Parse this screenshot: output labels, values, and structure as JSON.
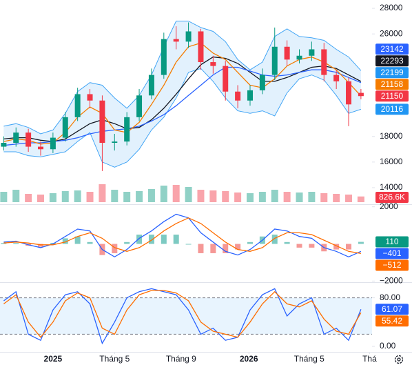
{
  "chart_data": [
    {
      "type": "candlestick",
      "xlim": [
        -0.3,
        29.9
      ],
      "ylim": [
        12760,
        28650
      ],
      "yticks": [
        14000,
        16000,
        18000,
        26000,
        28000
      ],
      "up_color": "#089981",
      "down_color": "#f23645",
      "open": [
        17200,
        17500,
        18300,
        17200,
        17000,
        17900,
        19500,
        21300,
        20800,
        17500,
        17600,
        19500,
        21200,
        22800,
        25600,
        25400,
        26200,
        23800,
        23500,
        21500,
        20800,
        21600,
        22800,
        25000,
        24000,
        24300,
        24800,
        22800,
        22300,
        21400
      ],
      "high": [
        18000,
        18700,
        18600,
        17600,
        18300,
        19900,
        21800,
        21700,
        21200,
        18200,
        19900,
        21700,
        23300,
        26100,
        26600,
        26900,
        26400,
        24300,
        23900,
        22000,
        22000,
        23300,
        26500,
        25500,
        24800,
        25400,
        25300,
        23200,
        22600,
        21700
      ],
      "low": [
        16900,
        17200,
        16800,
        16500,
        16700,
        17600,
        19200,
        20200,
        15300,
        16900,
        17300,
        19200,
        20900,
        22500,
        24800,
        24900,
        23200,
        22900,
        20800,
        20200,
        20400,
        21300,
        22400,
        23500,
        23700,
        23900,
        22300,
        21700,
        18800,
        20900
      ],
      "close": [
        17500,
        18300,
        17200,
        17000,
        17900,
        19500,
        21300,
        20800,
        17500,
        17600,
        19500,
        21200,
        22800,
        25600,
        25400,
        26200,
        23800,
        23500,
        21500,
        20800,
        21600,
        22800,
        25000,
        24000,
        24300,
        24800,
        22800,
        22300,
        20500,
        21150
      ],
      "bands": {
        "fill": "rgba(33,150,243,0.13)",
        "upper": {
          "color": "#42a5f5",
          "badge_color": "#2962ff",
          "values": [
            18800,
            19000,
            18700,
            18200,
            18500,
            19800,
            21500,
            22200,
            22000,
            21000,
            20200,
            21200,
            22800,
            25000,
            27000,
            27000,
            26500,
            26200,
            25400,
            24000,
            23200,
            23800,
            25800,
            26400,
            25800,
            25700,
            25500,
            24800,
            24200,
            23142
          ]
        },
        "lower": {
          "color": "#42a5f5",
          "badge_color": "#2196f3",
          "values": [
            16800,
            16800,
            16500,
            16400,
            16600,
            16800,
            17600,
            18300,
            16000,
            15600,
            16000,
            17000,
            18500,
            19500,
            21000,
            23000,
            23300,
            22300,
            21000,
            20000,
            19800,
            20000,
            19600,
            21400,
            22500,
            22800,
            22400,
            21200,
            19800,
            20116
          ]
        }
      },
      "overlays": [
        {
          "color": "#131722",
          "values": [
            17800,
            17900,
            17900,
            17700,
            17600,
            17800,
            18400,
            19000,
            19300,
            19000,
            18600,
            18700,
            19300,
            20200,
            21300,
            22500,
            23600,
            24200,
            24100,
            23700,
            23000,
            22300,
            22300,
            22600,
            23000,
            23400,
            23500,
            23300,
            22800,
            22293
          ]
        },
        {
          "color": "#2962ff",
          "badge_color": "#2196f3",
          "values": [
            17300,
            17400,
            17500,
            17500,
            17600,
            17700,
            17900,
            18200,
            18400,
            18500,
            18600,
            18800,
            19200,
            19700,
            20400,
            21200,
            22000,
            22800,
            23400,
            23400,
            23100,
            22800,
            22700,
            22800,
            23000,
            23200,
            23200,
            23000,
            22600,
            22199
          ]
        },
        {
          "color": "#f57c00",
          "values": [
            17600,
            17800,
            17700,
            17400,
            17500,
            18300,
            19500,
            20300,
            19800,
            18500,
            18300,
            19100,
            20500,
            22000,
            23800,
            25000,
            25300,
            24500,
            24000,
            23000,
            22000,
            21800,
            22500,
            23500,
            24000,
            24200,
            23800,
            23200,
            22200,
            21158
          ]
        }
      ],
      "volume": {
        "values": [
          1500000,
          1800000,
          1200000,
          1100000,
          1300000,
          1600000,
          1700000,
          1500000,
          2600000,
          1800000,
          1500000,
          1600000,
          1900000,
          2400000,
          2500000,
          2200000,
          1800000,
          1700000,
          1600000,
          1400000,
          1300000,
          1500000,
          1800000,
          1500000,
          1400000,
          1500000,
          1300000,
          1200000,
          1100000,
          826600
        ],
        "value_labels": [
          null,
          null,
          null,
          null,
          null,
          null,
          null,
          null,
          null,
          null,
          null,
          null,
          null,
          null,
          null,
          null,
          null,
          null,
          null,
          null,
          null,
          null,
          null,
          null,
          null,
          null,
          null,
          null,
          null,
          "826.6K"
        ]
      }
    },
    {
      "type": "macd",
      "xlim": [
        -0.3,
        29.9
      ],
      "ylim": [
        -2100,
        2100
      ],
      "yticks": [
        2000,
        {
          "value": -2000,
          "label": "−2000"
        }
      ],
      "histogram": {
        "pos_color": "#26a69a",
        "neg_color": "#ef5350",
        "badge_color": "#089981",
        "values": [
          50,
          50,
          -100,
          -150,
          50,
          300,
          400,
          100,
          -600,
          -500,
          100,
          500,
          500,
          500,
          500,
          0,
          -500,
          -500,
          -500,
          -300,
          100,
          400,
          500,
          100,
          -200,
          -200,
          -400,
          -300,
          -300,
          110
        ]
      },
      "series": [
        {
          "color": "#2962ff",
          "values": [
            100,
            150,
            -50,
            -200,
            0,
            400,
            800,
            700,
            -300,
            -700,
            -300,
            300,
            700,
            1200,
            1600,
            1400,
            600,
            100,
            -400,
            -600,
            -300,
            200,
            800,
            700,
            400,
            300,
            -200,
            -400,
            -700,
            -401
          ],
          "value_labels": [
            null,
            null,
            null,
            null,
            null,
            null,
            null,
            null,
            null,
            null,
            null,
            null,
            null,
            null,
            null,
            null,
            null,
            null,
            null,
            null,
            null,
            null,
            null,
            null,
            null,
            null,
            null,
            null,
            null,
            "−401"
          ]
        },
        {
          "color": "#ff6d00",
          "values": [
            50,
            100,
            50,
            -50,
            -50,
            100,
            400,
            600,
            300,
            -200,
            -400,
            -200,
            200,
            700,
            1100,
            1400,
            1100,
            600,
            100,
            -300,
            -400,
            -200,
            300,
            600,
            600,
            500,
            200,
            -100,
            -400,
            -512
          ],
          "value_labels": [
            null,
            null,
            null,
            null,
            null,
            null,
            null,
            null,
            null,
            null,
            null,
            null,
            null,
            null,
            null,
            null,
            null,
            null,
            null,
            null,
            null,
            null,
            null,
            null,
            null,
            null,
            null,
            null,
            null,
            "−512"
          ]
        }
      ]
    },
    {
      "type": "line",
      "xlim": [
        -0.3,
        29.9
      ],
      "ylim": [
        0,
        100
      ],
      "yticks": [
        {
          "value": 80,
          "label": "80.00"
        },
        {
          "value": 0,
          "label": "0.00"
        }
      ],
      "levels": [
        20,
        80
      ],
      "level_fill": "rgba(33,150,243,0.1)",
      "series": [
        {
          "color": "#2962ff",
          "values": [
            75,
            90,
            20,
            10,
            60,
            85,
            90,
            70,
            5,
            40,
            80,
            90,
            95,
            90,
            85,
            60,
            20,
            30,
            10,
            15,
            60,
            85,
            95,
            50,
            70,
            80,
            20,
            30,
            10,
            61.07
          ]
        },
        {
          "color": "#ff6d00",
          "values": [
            70,
            85,
            40,
            15,
            40,
            75,
            88,
            80,
            30,
            20,
            60,
            85,
            92,
            92,
            88,
            75,
            40,
            25,
            20,
            15,
            40,
            70,
            90,
            70,
            65,
            75,
            45,
            25,
            20,
            55.42
          ]
        }
      ],
      "xticks": [
        {
          "value": 4,
          "label": "2025"
        },
        {
          "value": 9,
          "label": "Tháng 5"
        },
        {
          "value": 14.4,
          "label": "Tháng 9"
        },
        {
          "value": 19.9,
          "label": "2026"
        },
        {
          "value": 24.8,
          "label": "Tháng 5"
        },
        {
          "value": 29.7,
          "label": "Thá"
        }
      ]
    }
  ]
}
